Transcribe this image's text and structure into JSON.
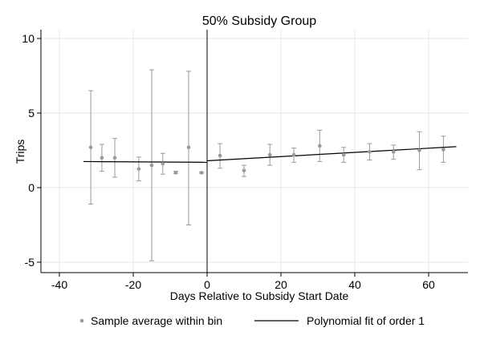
{
  "chart_data": {
    "type": "scatter",
    "title": "50% Subsidy Group",
    "xlabel": "Days Relative to Subsidy Start Date",
    "ylabel": "Trips",
    "xlim": [
      -43,
      70
    ],
    "ylim": [
      -6,
      10.5
    ],
    "x_ticks": [
      -40,
      -20,
      0,
      20,
      40,
      60
    ],
    "x_tick_labels": [
      "-40",
      "-20",
      "0",
      "20",
      "40",
      "60"
    ],
    "y_ticks": [
      -5,
      0,
      5,
      10
    ],
    "y_tick_labels": [
      "-5",
      "0",
      "5",
      "10"
    ],
    "grid": true,
    "vline_x": 0,
    "legend_position": "bottom",
    "legend": [
      "Sample average within bin",
      "Polynomial fit of order 1"
    ],
    "series": [
      {
        "name": "Sample average within bin",
        "points": [
          {
            "x": -31.5,
            "y": 2.7,
            "lo": -1.1,
            "hi": 6.5
          },
          {
            "x": -28.5,
            "y": 2.0,
            "lo": 1.1,
            "hi": 2.9
          },
          {
            "x": -25,
            "y": 2.0,
            "lo": 0.7,
            "hi": 3.3
          },
          {
            "x": -18.5,
            "y": 1.25,
            "lo": 0.45,
            "hi": 2.05
          },
          {
            "x": -15,
            "y": 1.5,
            "lo": -4.9,
            "hi": 7.9
          },
          {
            "x": -12,
            "y": 1.6,
            "lo": 0.9,
            "hi": 2.3
          },
          {
            "x": -8.5,
            "y": 1.0,
            "lo": 0.95,
            "hi": 1.1
          },
          {
            "x": -5,
            "y": 2.7,
            "lo": -2.5,
            "hi": 7.8
          },
          {
            "x": -1.5,
            "y": 1.0,
            "lo": 0.95,
            "hi": 1.05
          },
          {
            "x": 3.5,
            "y": 2.15,
            "lo": 1.3,
            "hi": 2.95
          },
          {
            "x": 10,
            "y": 1.15,
            "lo": 0.75,
            "hi": 1.5
          },
          {
            "x": 17,
            "y": 2.2,
            "lo": 1.5,
            "hi": 2.9
          },
          {
            "x": 23.5,
            "y": 2.2,
            "lo": 1.7,
            "hi": 2.65
          },
          {
            "x": 30.5,
            "y": 2.8,
            "lo": 1.75,
            "hi": 3.85
          },
          {
            "x": 37,
            "y": 2.2,
            "lo": 1.7,
            "hi": 2.7
          },
          {
            "x": 44,
            "y": 2.4,
            "lo": 1.85,
            "hi": 2.95
          },
          {
            "x": 50.5,
            "y": 2.4,
            "lo": 1.9,
            "hi": 2.85
          },
          {
            "x": 57.5,
            "y": 2.5,
            "lo": 1.2,
            "hi": 3.75
          },
          {
            "x": 64,
            "y": 2.55,
            "lo": 1.7,
            "hi": 3.45
          }
        ]
      },
      {
        "name": "Polynomial fit of order 1",
        "segments": [
          {
            "x": [
              -33.5,
              0
            ],
            "y": [
              1.75,
              1.7
            ]
          },
          {
            "x": [
              0,
              67.5
            ],
            "y": [
              1.8,
              2.75
            ]
          }
        ]
      }
    ],
    "colors": {
      "markers": "#9a9a9a",
      "fit_line": "#000000",
      "grid": "#e6e6e6",
      "axis": "#000000"
    }
  }
}
